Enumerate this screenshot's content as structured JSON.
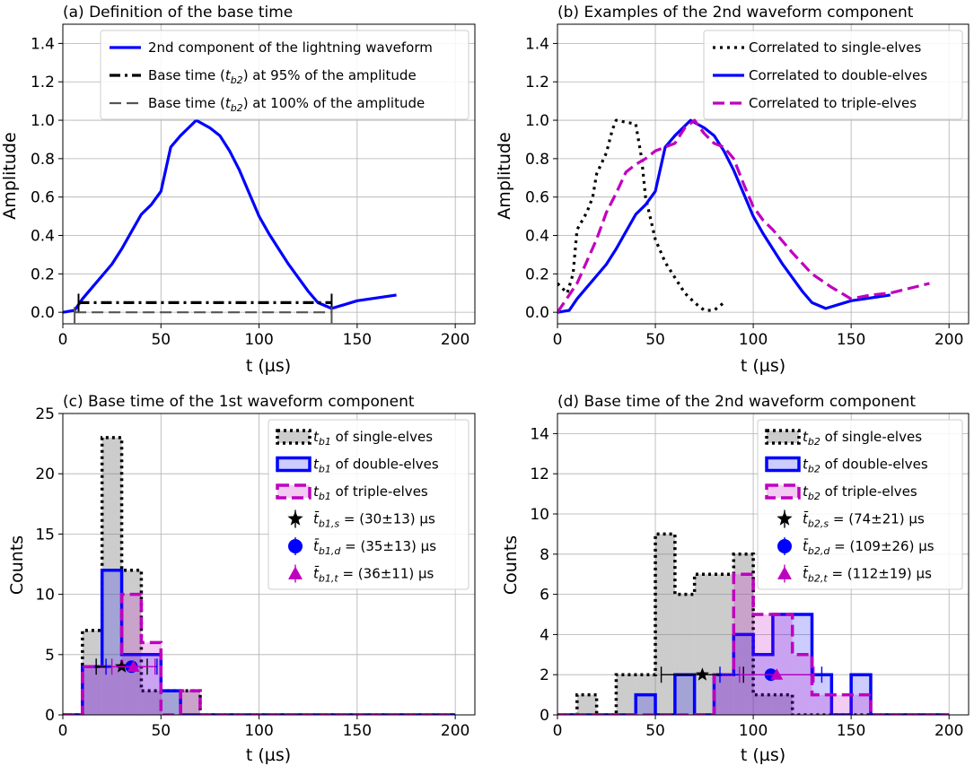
{
  "chart_data": [
    {
      "panel": "a",
      "type": "line",
      "title": "(a) Definition of the base time",
      "xlabel": "t (µs)",
      "ylabel": "Amplitude",
      "xlim": [
        0,
        210
      ],
      "ylim": [
        -0.06,
        1.5
      ],
      "xticks": [
        0,
        50,
        100,
        150,
        200
      ],
      "yticks": [
        0.0,
        0.2,
        0.4,
        0.6,
        0.8,
        1.0,
        1.2,
        1.4
      ],
      "grid": true,
      "legend_position": "top-right",
      "series": [
        {
          "name": "2nd component of the lightning waveform",
          "style": "solid",
          "color": "#0000ff",
          "x": [
            0,
            6,
            10,
            15,
            20,
            25,
            30,
            35,
            40,
            45,
            50,
            55,
            60,
            65,
            68,
            75,
            80,
            85,
            90,
            95,
            100,
            105,
            110,
            115,
            120,
            125,
            130,
            137,
            150,
            170
          ],
          "y": [
            0,
            0.01,
            0.07,
            0.13,
            0.19,
            0.25,
            0.33,
            0.42,
            0.51,
            0.56,
            0.63,
            0.86,
            0.92,
            0.97,
            1.0,
            0.96,
            0.92,
            0.84,
            0.74,
            0.62,
            0.5,
            0.41,
            0.33,
            0.25,
            0.18,
            0.11,
            0.05,
            0.02,
            0.06,
            0.09
          ]
        },
        {
          "name": "Base time (t_b2) at 95% of the amplitude",
          "style": "dashdot",
          "color": "#000000",
          "x": [
            8,
            137
          ],
          "y": [
            0.05,
            0.05
          ]
        },
        {
          "name": "Base time (t_b2) at 100% of the amplitude",
          "style": "dashed",
          "color": "#555555",
          "x": [
            6,
            137
          ],
          "y": [
            0.0,
            0.0
          ]
        }
      ],
      "legend": [
        {
          "label": "2nd component of the lightning waveform",
          "series": 0
        },
        {
          "label_pre": "Base time (",
          "sym": "t",
          "sub": "b2",
          "label_post": ") at 95% of the amplitude",
          "series": 1
        },
        {
          "label_pre": "Base time (",
          "sym": "t",
          "sub": "b2",
          "label_post": ") at 100% of the amplitude",
          "series": 2
        }
      ]
    },
    {
      "panel": "b",
      "type": "line",
      "title": "(b) Examples of the 2nd waveform component",
      "xlabel": "t (µs)",
      "ylabel": "Amplitude",
      "xlim": [
        0,
        210
      ],
      "ylim": [
        -0.06,
        1.5
      ],
      "xticks": [
        0,
        50,
        100,
        150,
        200
      ],
      "yticks": [
        0.0,
        0.2,
        0.4,
        0.6,
        0.8,
        1.0,
        1.2,
        1.4
      ],
      "grid": true,
      "legend_position": "top-right",
      "series": [
        {
          "name": "Correlated to single-elves",
          "style": "dotted",
          "color": "#000000",
          "x": [
            0,
            5,
            8,
            10,
            15,
            18,
            20,
            25,
            28,
            30,
            35,
            40,
            43,
            45,
            50,
            55,
            60,
            65,
            70,
            75,
            80,
            85
          ],
          "y": [
            0.15,
            0.1,
            0.2,
            0.43,
            0.52,
            0.6,
            0.72,
            0.83,
            0.95,
            1.0,
            0.99,
            0.98,
            0.8,
            0.6,
            0.38,
            0.26,
            0.18,
            0.1,
            0.05,
            0.01,
            0.01,
            0.05
          ]
        },
        {
          "name": "Correlated to double-elves",
          "style": "solid",
          "color": "#0000ff",
          "x": [
            0,
            6,
            10,
            15,
            20,
            25,
            30,
            35,
            40,
            45,
            50,
            55,
            60,
            65,
            68,
            75,
            80,
            85,
            90,
            95,
            100,
            105,
            110,
            115,
            120,
            125,
            130,
            137,
            150,
            170
          ],
          "y": [
            0,
            0.01,
            0.07,
            0.13,
            0.19,
            0.25,
            0.33,
            0.42,
            0.51,
            0.56,
            0.63,
            0.86,
            0.92,
            0.97,
            1.0,
            0.96,
            0.92,
            0.84,
            0.74,
            0.62,
            0.5,
            0.41,
            0.33,
            0.25,
            0.18,
            0.11,
            0.05,
            0.02,
            0.06,
            0.09
          ]
        },
        {
          "name": "Correlated to triple-elves",
          "style": "dashed",
          "color": "#bf00bf",
          "x": [
            0,
            10,
            20,
            25,
            30,
            35,
            40,
            45,
            50,
            55,
            60,
            65,
            70,
            75,
            80,
            85,
            90,
            95,
            100,
            105,
            110,
            120,
            130,
            140,
            150,
            160,
            170,
            190
          ],
          "y": [
            0.0,
            0.15,
            0.38,
            0.52,
            0.62,
            0.73,
            0.77,
            0.8,
            0.84,
            0.86,
            0.88,
            0.96,
            1.0,
            0.93,
            0.88,
            0.86,
            0.8,
            0.67,
            0.55,
            0.48,
            0.43,
            0.31,
            0.2,
            0.13,
            0.07,
            0.09,
            0.1,
            0.15
          ]
        }
      ],
      "legend": [
        {
          "label": "Correlated to single-elves",
          "series": 0
        },
        {
          "label": "Correlated to double-elves",
          "series": 1
        },
        {
          "label": "Correlated to triple-elves",
          "series": 2
        }
      ]
    },
    {
      "panel": "c",
      "type": "histogram",
      "title": "(c) Base time of the 1st waveform component",
      "xlabel": "t (µs)",
      "ylabel": "Counts",
      "xlim": [
        0,
        210
      ],
      "ylim": [
        0,
        25
      ],
      "xticks": [
        0,
        50,
        100,
        150,
        200
      ],
      "yticks": [
        0,
        5,
        10,
        15,
        20,
        25
      ],
      "grid": true,
      "legend_position": "top-right",
      "bin_edges": [
        0,
        10,
        20,
        30,
        40,
        50,
        60,
        70,
        80,
        90,
        100,
        110,
        120,
        130,
        140,
        150,
        160,
        170,
        180,
        190,
        200
      ],
      "series": [
        {
          "name": "t_b1 of single-elves",
          "style": "dotted",
          "color": "#000000",
          "fill": "#808080",
          "counts": [
            0,
            7,
            23,
            12,
            2,
            2,
            2,
            0,
            0,
            0,
            0,
            0,
            0,
            0,
            0,
            0,
            0,
            0,
            0,
            0
          ]
        },
        {
          "name": "t_b1 of double-elves",
          "style": "solid",
          "color": "#0000ff",
          "fill": "#0000ff",
          "counts": [
            0,
            4,
            12,
            5,
            5,
            2,
            0,
            0,
            0,
            0,
            0,
            0,
            0,
            0,
            0,
            0,
            0,
            0,
            0,
            0
          ]
        },
        {
          "name": "t_b1 of triple-elves",
          "style": "dashed",
          "color": "#bf00bf",
          "fill": "#bf00bf",
          "counts": [
            0,
            4,
            4,
            10,
            6,
            0,
            2,
            0,
            0,
            0,
            0,
            0,
            0,
            0,
            0,
            0,
            0,
            0,
            0,
            0
          ]
        }
      ],
      "means": [
        {
          "group": "single",
          "mean": 30,
          "err": 13,
          "y": 4,
          "marker": "star",
          "color": "#000000",
          "label_sub": "b1,s",
          "value": "(30±13)"
        },
        {
          "group": "double",
          "mean": 35,
          "err": 13,
          "y": 4,
          "marker": "circle",
          "color": "#0000ff",
          "label_sub": "b1,d",
          "value": "(35±13)"
        },
        {
          "group": "triple",
          "mean": 36,
          "err": 11,
          "y": 4,
          "marker": "triangle",
          "color": "#bf00bf",
          "label_sub": "b1,t",
          "value": "(36±11)"
        }
      ],
      "legend": [
        {
          "sym": "t",
          "sub": "b1",
          "post": " of single-elves",
          "series": 0
        },
        {
          "sym": "t",
          "sub": "b1",
          "post": " of double-elves",
          "series": 1
        },
        {
          "sym": "t",
          "sub": "b1",
          "post": " of triple-elves",
          "series": 2
        },
        {
          "mean": 0,
          "sym": "t̄",
          "sub": "b1,s",
          "post": " = (30±13) µs"
        },
        {
          "mean": 1,
          "sym": "t̄",
          "sub": "b1,d",
          "post": " = (35±13) µs"
        },
        {
          "mean": 2,
          "sym": "t̄",
          "sub": "b1,t",
          "post": " = (36±11) µs"
        }
      ]
    },
    {
      "panel": "d",
      "type": "histogram",
      "title": "(d) Base time of the 2nd waveform component",
      "xlabel": "t (µs)",
      "ylabel": "Counts",
      "xlim": [
        0,
        210
      ],
      "ylim": [
        0,
        15
      ],
      "xticks": [
        0,
        50,
        100,
        150,
        200
      ],
      "yticks": [
        0,
        2,
        4,
        6,
        8,
        10,
        12,
        14
      ],
      "grid": true,
      "legend_position": "top-right",
      "bin_edges": [
        0,
        10,
        20,
        30,
        40,
        50,
        60,
        70,
        80,
        90,
        100,
        110,
        120,
        130,
        140,
        150,
        160,
        170,
        180,
        190,
        200
      ],
      "series": [
        {
          "name": "t_b2 of single-elves",
          "style": "dotted",
          "color": "#000000",
          "fill": "#808080",
          "counts": [
            0,
            1,
            0,
            2,
            2,
            9,
            6,
            7,
            7,
            8,
            1,
            1,
            0,
            0,
            0,
            0,
            0,
            0,
            0,
            0
          ]
        },
        {
          "name": "t_b2 of double-elves",
          "style": "solid",
          "color": "#0000ff",
          "fill": "#0000ff",
          "counts": [
            0,
            0,
            0,
            0,
            1,
            0,
            2,
            0,
            2,
            4,
            3,
            5,
            5,
            2,
            0,
            2,
            0,
            0,
            0,
            0
          ]
        },
        {
          "name": "t_b2 of triple-elves",
          "style": "dashed",
          "color": "#bf00bf",
          "fill": "#bf00bf",
          "counts": [
            0,
            0,
            0,
            0,
            0,
            0,
            0,
            0,
            2,
            7,
            5,
            5,
            3,
            1,
            1,
            1,
            0,
            0,
            0,
            0
          ]
        }
      ],
      "means": [
        {
          "group": "single",
          "mean": 74,
          "err": 21,
          "y": 2,
          "marker": "star",
          "color": "#000000",
          "label_sub": "b2,s",
          "value": "(74±21)"
        },
        {
          "group": "double",
          "mean": 109,
          "err": 26,
          "y": 2,
          "marker": "circle",
          "color": "#0000ff",
          "label_sub": "b2,d",
          "value": "(109±26)"
        },
        {
          "group": "triple",
          "mean": 112,
          "err": 19,
          "y": 2,
          "marker": "triangle",
          "color": "#bf00bf",
          "label_sub": "b2,t",
          "value": "(112±19)"
        }
      ],
      "legend": [
        {
          "sym": "t",
          "sub": "b2",
          "post": " of single-elves",
          "series": 0
        },
        {
          "sym": "t",
          "sub": "b2",
          "post": " of double-elves",
          "series": 1
        },
        {
          "sym": "t",
          "sub": "b2",
          "post": " of triple-elves",
          "series": 2
        },
        {
          "mean": 0,
          "sym": "t̄",
          "sub": "b2,s",
          "post": " = (74±21) µs"
        },
        {
          "mean": 1,
          "sym": "t̄",
          "sub": "b2,d",
          "post": " = (109±26) µs"
        },
        {
          "mean": 2,
          "sym": "t̄",
          "sub": "b2,t",
          "post": " = (112±19) µs"
        }
      ]
    }
  ]
}
